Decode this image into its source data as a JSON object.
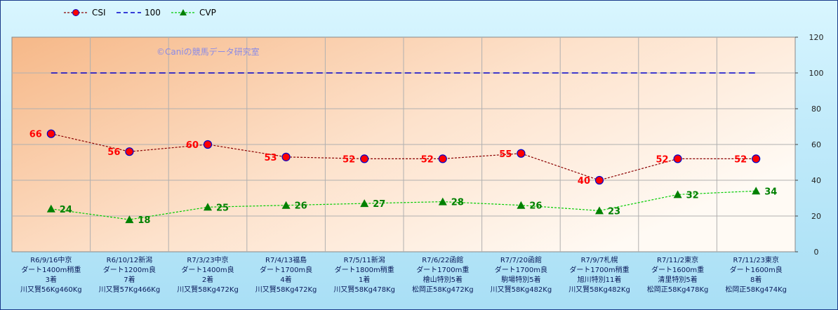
{
  "chart_data": {
    "type": "line",
    "watermark": "©Caniの競馬データ研究室",
    "ylim": [
      0,
      120
    ],
    "yticks": [
      0,
      20,
      40,
      60,
      80,
      100,
      120
    ],
    "grid": true,
    "legend_position": "top-left",
    "categories": [
      [
        "R6/9/16中京",
        "ダート1400m稍重",
        "3着",
        "川又賢56Kg460Kg"
      ],
      [
        "R6/10/12新潟",
        "ダート1200m良",
        "7着",
        "川又賢57Kg466Kg"
      ],
      [
        "R7/3/23中京",
        "ダート1400m良",
        "2着",
        "川又賢58Kg472Kg"
      ],
      [
        "R7/4/13福島",
        "ダート1700m良",
        "4着",
        "川又賢58Kg472Kg"
      ],
      [
        "R7/5/11新潟",
        "ダート1800m稍重",
        "1着",
        "川又賢58Kg478Kg"
      ],
      [
        "R7/6/22函館",
        "ダート1700m重",
        "檜山特別5着",
        "松岡正58Kg472Kg"
      ],
      [
        "R7/7/20函館",
        "ダート1700m良",
        "駒場特別5着",
        "川又賢58Kg482Kg"
      ],
      [
        "R7/9/7札幌",
        "ダート1700m稍重",
        "旭川特別11着",
        "川又賢58Kg482Kg"
      ],
      [
        "R7/11/2東京",
        "ダート1600m重",
        "清里特別5着",
        "松岡正58Kg478Kg"
      ],
      [
        "R7/11/23東京",
        "ダート1600m良",
        "8着",
        "松岡正58Kg474Kg"
      ]
    ],
    "series": [
      {
        "name": "CSI",
        "values": [
          66,
          56,
          60,
          53,
          52,
          52,
          55,
          40,
          52,
          52
        ],
        "color": "#8b0000",
        "marker_fill": "#ff0000",
        "marker_edge": "#0000cc",
        "label_color": "#ff0000"
      },
      {
        "name": "100",
        "values": [
          100,
          100,
          100,
          100,
          100,
          100,
          100,
          100,
          100,
          100
        ],
        "color": "#0000cc"
      },
      {
        "name": "CVP",
        "values": [
          24,
          18,
          25,
          26,
          27,
          28,
          26,
          23,
          32,
          34
        ],
        "color": "#00cc00",
        "marker_fill": "#008000",
        "label_color": "#008000"
      }
    ]
  }
}
